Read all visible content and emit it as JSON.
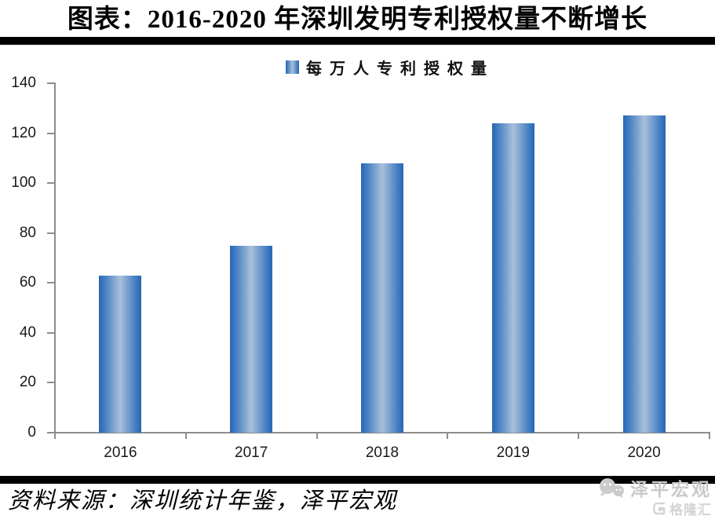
{
  "header": {
    "title": "图表：2016-2020 年深圳发明专利授权量不断增长"
  },
  "legend": {
    "label": "每万人专利授权量"
  },
  "chart_data": {
    "type": "bar",
    "title": "图表：2016-2020 年深圳发明专利授权量不断增长",
    "categories": [
      "2016",
      "2017",
      "2018",
      "2019",
      "2020"
    ],
    "values": [
      63,
      75,
      108,
      124,
      127
    ],
    "series_name": "每万人专利授权量",
    "xlabel": "",
    "ylabel": "",
    "ylim": [
      0,
      140
    ],
    "yticks": [
      0,
      20,
      40,
      60,
      80,
      100,
      120,
      140
    ],
    "grid": false,
    "legend_position": "top-center"
  },
  "colors": {
    "bar_edge": "#2a66b1",
    "bar_mid": "#3f7bc1",
    "bar_center": "#a9c0da",
    "axis": "#8e8e8e",
    "rule": "#000000",
    "watermark_light": "#c9c9c9"
  },
  "footer": {
    "source": "资料来源：深圳统计年鉴，泽平宏观"
  },
  "watermark": {
    "brand1": "泽平宏观",
    "brand2": "格隆汇"
  }
}
